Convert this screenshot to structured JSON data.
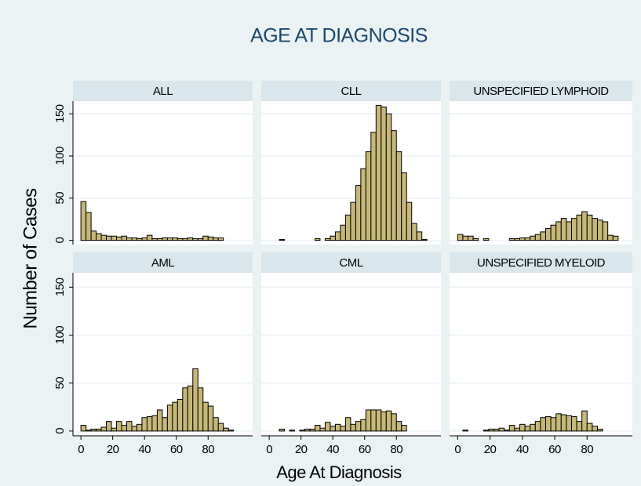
{
  "title": "AGE AT DIAGNOSIS",
  "x_label": "Age At Diagnosis",
  "y_label": "Number of Cases",
  "chart_data": [
    {
      "type": "histogram",
      "title": "ALL",
      "color": "#c8b878",
      "grid": true,
      "bins": [
        0,
        3.2,
        6.4,
        9.6,
        12.8,
        16,
        19.2,
        22.4,
        25.6,
        28.8,
        32,
        35.2,
        38.4,
        41.6,
        44.8,
        48,
        51.2,
        54.4,
        57.6,
        60.8,
        64,
        67.2,
        70.4,
        73.6,
        76.8,
        80,
        83.2,
        86.4,
        89.6,
        92.8,
        96,
        99.2,
        102.4
      ],
      "values": [
        46,
        33,
        11,
        8,
        6,
        5,
        5,
        4,
        5,
        3,
        3,
        2,
        3,
        6,
        2,
        2,
        3,
        3,
        3,
        2,
        2,
        3,
        2,
        2,
        5,
        4,
        3,
        3,
        0,
        0,
        0,
        0
      ],
      "xlim": [
        -5,
        108
      ],
      "ylim": [
        -5,
        165
      ],
      "yticks": [
        0,
        50,
        100,
        150
      ]
    },
    {
      "type": "histogram",
      "title": "CLL",
      "color": "#c8b878",
      "grid": true,
      "bins": [
        0,
        3.2,
        6.4,
        9.6,
        12.8,
        16,
        19.2,
        22.4,
        25.6,
        28.8,
        32,
        35.2,
        38.4,
        41.6,
        44.8,
        48,
        51.2,
        54.4,
        57.6,
        60.8,
        64,
        67.2,
        70.4,
        73.6,
        76.8,
        80,
        83.2,
        86.4,
        89.6,
        92.8,
        96,
        99.2,
        102.4
      ],
      "values": [
        0,
        0,
        1,
        0,
        0,
        0,
        0,
        0,
        0,
        2,
        0,
        2,
        5,
        10,
        18,
        30,
        45,
        65,
        85,
        105,
        128,
        160,
        158,
        150,
        130,
        105,
        80,
        45,
        20,
        10,
        1,
        0
      ],
      "xlim": [
        -5,
        108
      ],
      "ylim": [
        -5,
        165
      ],
      "yticks": [
        0,
        50,
        100,
        150
      ]
    },
    {
      "type": "histogram",
      "title": "UNSPECIFIED LYMPHOID",
      "color": "#c8b878",
      "grid": true,
      "bins": [
        0,
        3.2,
        6.4,
        9.6,
        12.8,
        16,
        19.2,
        22.4,
        25.6,
        28.8,
        32,
        35.2,
        38.4,
        41.6,
        44.8,
        48,
        51.2,
        54.4,
        57.6,
        60.8,
        64,
        67.2,
        70.4,
        73.6,
        76.8,
        80,
        83.2,
        86.4,
        89.6,
        92.8,
        96,
        99.2,
        102.4
      ],
      "values": [
        7,
        5,
        5,
        2,
        0,
        2,
        0,
        0,
        0,
        0,
        2,
        2,
        3,
        3,
        5,
        7,
        10,
        14,
        18,
        22,
        26,
        22,
        26,
        30,
        34,
        30,
        26,
        24,
        22,
        6,
        5,
        0
      ],
      "xlim": [
        -5,
        108
      ],
      "ylim": [
        -5,
        165
      ],
      "yticks": [
        0,
        50,
        100,
        150
      ]
    },
    {
      "type": "histogram",
      "title": "AML",
      "color": "#c8b878",
      "grid": true,
      "bins": [
        0,
        3.2,
        6.4,
        9.6,
        12.8,
        16,
        19.2,
        22.4,
        25.6,
        28.8,
        32,
        35.2,
        38.4,
        41.6,
        44.8,
        48,
        51.2,
        54.4,
        57.6,
        60.8,
        64,
        67.2,
        70.4,
        73.6,
        76.8,
        80,
        83.2,
        86.4,
        89.6,
        92.8,
        96,
        99.2,
        102.4
      ],
      "values": [
        6,
        1,
        2,
        2,
        4,
        10,
        3,
        10,
        6,
        10,
        5,
        7,
        14,
        15,
        16,
        22,
        14,
        27,
        30,
        33,
        45,
        47,
        65,
        45,
        30,
        26,
        14,
        8,
        3,
        1,
        0,
        0
      ],
      "xlim": [
        -5,
        108
      ],
      "ylim": [
        -5,
        165
      ],
      "yticks": [
        0,
        50,
        100,
        150
      ],
      "xticks": [
        0,
        20,
        40,
        60,
        80
      ]
    },
    {
      "type": "histogram",
      "title": "CML",
      "color": "#c8b878",
      "grid": true,
      "bins": [
        0,
        3.2,
        6.4,
        9.6,
        12.8,
        16,
        19.2,
        22.4,
        25.6,
        28.8,
        32,
        35.2,
        38.4,
        41.6,
        44.8,
        48,
        51.2,
        54.4,
        57.6,
        60.8,
        64,
        67.2,
        70.4,
        73.6,
        76.8,
        80,
        83.2,
        86.4,
        89.6,
        92.8,
        96,
        99.2,
        102.4
      ],
      "values": [
        0,
        0,
        2,
        0,
        1,
        0,
        1,
        2,
        2,
        6,
        3,
        9,
        5,
        7,
        5,
        14,
        7,
        10,
        12,
        22,
        22,
        22,
        20,
        21,
        18,
        10,
        6,
        0,
        0,
        0,
        0,
        0
      ],
      "xlim": [
        -5,
        108
      ],
      "ylim": [
        -5,
        165
      ],
      "yticks": [
        0,
        50,
        100,
        150
      ],
      "xticks": [
        0,
        20,
        40,
        60,
        80
      ]
    },
    {
      "type": "histogram",
      "title": "UNSPECIFIED MYELOID",
      "color": "#c8b878",
      "grid": true,
      "bins": [
        0,
        3.2,
        6.4,
        9.6,
        12.8,
        16,
        19.2,
        22.4,
        25.6,
        28.8,
        32,
        35.2,
        38.4,
        41.6,
        44.8,
        48,
        51.2,
        54.4,
        57.6,
        60.8,
        64,
        67.2,
        70.4,
        73.6,
        76.8,
        80,
        83.2,
        86.4,
        89.6,
        92.8,
        96,
        99.2,
        102.4
      ],
      "values": [
        0,
        1,
        0,
        0,
        0,
        1,
        2,
        2,
        3,
        1,
        6,
        3,
        7,
        5,
        7,
        10,
        14,
        15,
        14,
        18,
        17,
        16,
        15,
        10,
        21,
        8,
        5,
        2,
        0,
        0,
        0,
        0
      ],
      "xlim": [
        -5,
        108
      ],
      "ylim": [
        -5,
        165
      ],
      "yticks": [
        0,
        50,
        100,
        150
      ],
      "xticks": [
        0,
        20,
        40,
        60,
        80
      ]
    }
  ]
}
